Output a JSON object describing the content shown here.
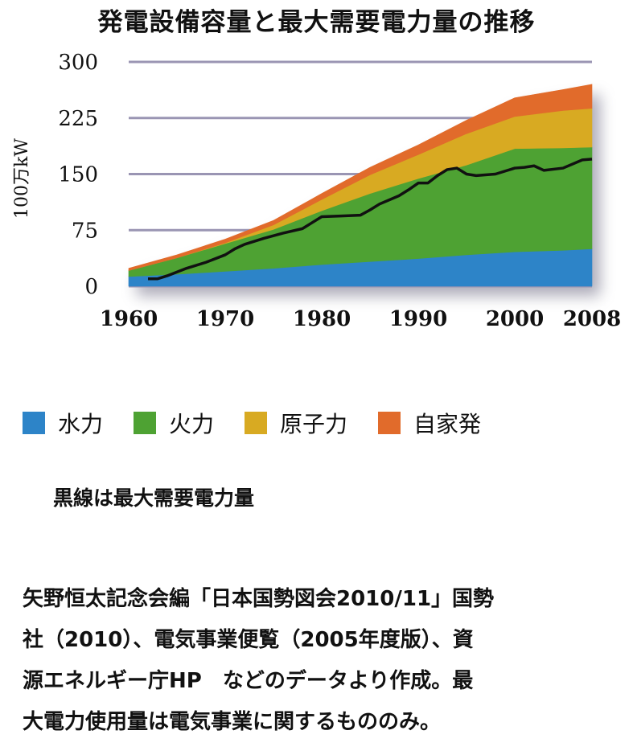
{
  "title": "発電設備容量と最大需要電力量の推移",
  "chart_data": {
    "type": "area",
    "title": "発電設備容量と最大需要電力量の推移",
    "xlabel": "",
    "ylabel": "100万kW",
    "xlim": [
      1960,
      2008
    ],
    "ylim": [
      0,
      300
    ],
    "x_ticks": [
      "1960",
      "1970",
      "1980",
      "1990",
      "2000",
      "2008"
    ],
    "y_ticks": [
      "300",
      "225",
      "150",
      "75",
      "0"
    ],
    "x": [
      1960,
      1965,
      1970,
      1975,
      1980,
      1985,
      1990,
      1995,
      2000,
      2005,
      2008
    ],
    "series": [
      {
        "name": "水力",
        "color": "#2d84c8",
        "values": [
          13,
          16,
          20,
          24,
          29,
          33,
          37,
          42,
          46,
          48,
          50
        ]
      },
      {
        "name": "火力",
        "color": "#4ea233",
        "values": [
          8,
          22,
          37,
          52,
          72,
          91,
          107,
          120,
          138,
          137,
          136
        ]
      },
      {
        "name": "原子力",
        "color": "#d8aa22",
        "values": [
          0,
          0,
          1,
          6,
          15,
          25,
          32,
          42,
          43,
          50,
          52
        ]
      },
      {
        "name": "自家発",
        "color": "#e16b2b",
        "values": [
          3,
          4,
          5,
          6,
          8,
          10,
          13,
          18,
          25,
          28,
          32
        ]
      }
    ],
    "max_demand": {
      "name": "最大需要電力量",
      "color": "#111111",
      "x": [
        1962,
        1963,
        1964,
        1966,
        1968,
        1970,
        1971,
        1972,
        1974,
        1976,
        1978,
        1979,
        1980,
        1982,
        1984,
        1985,
        1986,
        1988,
        1989,
        1990,
        1991,
        1992,
        1993,
        1994,
        1995,
        1996,
        1998,
        2000,
        2001,
        2002,
        2003,
        2005,
        2007,
        2008
      ],
      "values": [
        10,
        10,
        14,
        24,
        32,
        42,
        50,
        56,
        64,
        71,
        77,
        85,
        93,
        94,
        95,
        102,
        110,
        121,
        129,
        138,
        138,
        148,
        156,
        158,
        150,
        148,
        150,
        158,
        159,
        161,
        155,
        158,
        169,
        170
      ]
    }
  },
  "legend": [
    {
      "label": "水力",
      "color": "#2d84c8"
    },
    {
      "label": "火力",
      "color": "#4ea233"
    },
    {
      "label": "原子力",
      "color": "#d8aa22"
    },
    {
      "label": "自家発",
      "color": "#e16b2b"
    }
  ],
  "note": "黒線は最大需要電力量",
  "source_lines": [
    "矢野恒太記念会編「日本国勢図会2010/11」国勢",
    "社（2010）、電気事業便覧（2005年度版）、資",
    "源エネルギー庁HP　などのデータより作成。最",
    "大電力使用量は電気事業に関するもののみ。"
  ]
}
